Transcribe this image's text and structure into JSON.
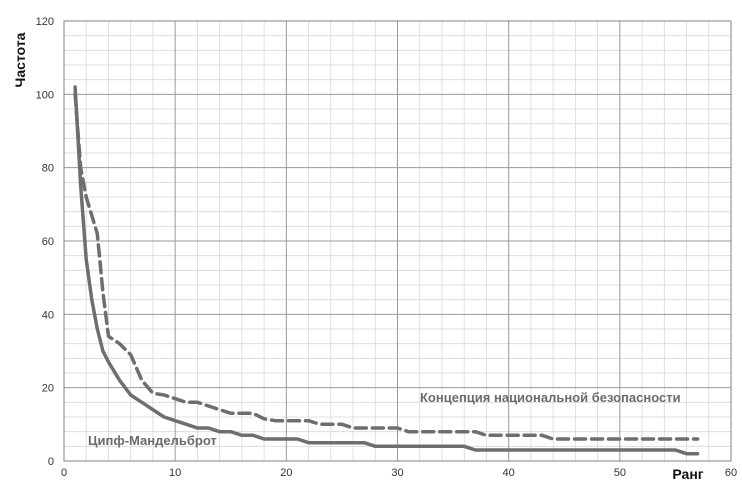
{
  "chart_data": {
    "type": "line",
    "xlabel": "Ранг",
    "ylabel": "Частота",
    "xlim": [
      0,
      60
    ],
    "ylim": [
      0,
      120
    ],
    "x_ticks": [
      "0",
      "10",
      "20",
      "30",
      "40",
      "50",
      "60"
    ],
    "y_ticks": [
      "0",
      "20",
      "40",
      "60",
      "80",
      "100",
      "120"
    ],
    "grid": true,
    "legend": "none",
    "annotations": [
      {
        "text": "Концепция национальной безопасности",
        "series_index": 0
      },
      {
        "text": "Ципф-Мандельброт",
        "series_index": 1
      }
    ],
    "series": [
      {
        "style": "dashed",
        "color": "#6e6e6e",
        "points": [
          [
            1,
            100
          ],
          [
            1.5,
            80
          ],
          [
            2,
            72
          ],
          [
            3,
            62
          ],
          [
            3.5,
            46
          ],
          [
            4,
            34
          ],
          [
            5,
            32
          ],
          [
            6,
            29
          ],
          [
            7,
            22
          ],
          [
            8,
            18.5
          ],
          [
            9,
            18
          ],
          [
            10,
            17
          ],
          [
            11,
            16
          ],
          [
            12,
            16
          ],
          [
            13,
            15
          ],
          [
            14,
            14
          ],
          [
            15,
            13
          ],
          [
            16,
            13
          ],
          [
            17,
            13
          ],
          [
            18,
            11.5
          ],
          [
            19,
            11
          ],
          [
            20,
            11
          ],
          [
            21,
            11
          ],
          [
            22,
            11
          ],
          [
            23,
            10
          ],
          [
            24,
            10
          ],
          [
            25,
            10
          ],
          [
            26,
            9
          ],
          [
            27,
            9
          ],
          [
            28,
            9
          ],
          [
            29,
            9
          ],
          [
            30,
            9
          ],
          [
            31,
            8
          ],
          [
            32,
            8
          ],
          [
            33,
            8
          ],
          [
            34,
            8
          ],
          [
            35,
            8
          ],
          [
            36,
            8
          ],
          [
            37,
            8
          ],
          [
            38,
            7
          ],
          [
            39,
            7
          ],
          [
            40,
            7
          ],
          [
            41,
            7
          ],
          [
            42,
            7
          ],
          [
            43,
            7
          ],
          [
            44,
            6
          ],
          [
            45,
            6
          ],
          [
            46,
            6
          ],
          [
            47,
            6
          ],
          [
            48,
            6
          ],
          [
            49,
            6
          ],
          [
            50,
            6
          ],
          [
            51,
            6
          ],
          [
            52,
            6
          ],
          [
            53,
            6
          ],
          [
            54,
            6
          ],
          [
            55,
            6
          ],
          [
            56,
            6
          ],
          [
            57,
            6
          ]
        ]
      },
      {
        "style": "solid",
        "color": "#6e6e6e",
        "points": [
          [
            1,
            102
          ],
          [
            1.5,
            75
          ],
          [
            2,
            55
          ],
          [
            2.5,
            44
          ],
          [
            3,
            36
          ],
          [
            3.5,
            30
          ],
          [
            4,
            27
          ],
          [
            5,
            22
          ],
          [
            6,
            18
          ],
          [
            7,
            16
          ],
          [
            8,
            14
          ],
          [
            9,
            12
          ],
          [
            10,
            11
          ],
          [
            11,
            10
          ],
          [
            12,
            9
          ],
          [
            13,
            9
          ],
          [
            14,
            8
          ],
          [
            15,
            8
          ],
          [
            16,
            7
          ],
          [
            17,
            7
          ],
          [
            18,
            6
          ],
          [
            19,
            6
          ],
          [
            20,
            6
          ],
          [
            21,
            6
          ],
          [
            22,
            5
          ],
          [
            23,
            5
          ],
          [
            24,
            5
          ],
          [
            25,
            5
          ],
          [
            26,
            5
          ],
          [
            27,
            5
          ],
          [
            28,
            4
          ],
          [
            29,
            4
          ],
          [
            30,
            4
          ],
          [
            31,
            4
          ],
          [
            32,
            4
          ],
          [
            33,
            4
          ],
          [
            34,
            4
          ],
          [
            35,
            4
          ],
          [
            36,
            4
          ],
          [
            37,
            3
          ],
          [
            38,
            3
          ],
          [
            39,
            3
          ],
          [
            40,
            3
          ],
          [
            41,
            3
          ],
          [
            42,
            3
          ],
          [
            43,
            3
          ],
          [
            44,
            3
          ],
          [
            45,
            3
          ],
          [
            46,
            3
          ],
          [
            47,
            3
          ],
          [
            48,
            3
          ],
          [
            49,
            3
          ],
          [
            50,
            3
          ],
          [
            51,
            3
          ],
          [
            52,
            3
          ],
          [
            53,
            3
          ],
          [
            54,
            3
          ],
          [
            55,
            3
          ],
          [
            56,
            2
          ],
          [
            57,
            2
          ]
        ]
      }
    ]
  }
}
